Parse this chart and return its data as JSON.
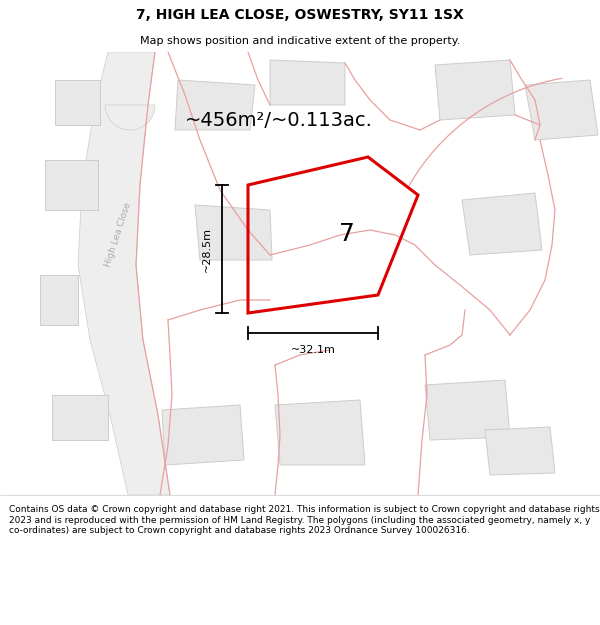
{
  "title": "7, HIGH LEA CLOSE, OSWESTRY, SY11 1SX",
  "subtitle": "Map shows position and indicative extent of the property.",
  "area_label": "~456m²/~0.113ac.",
  "number_label": "7",
  "width_label": "~32.1m",
  "height_label": "~28.5m",
  "road_label": "High Lea Close",
  "footer": "Contains OS data © Crown copyright and database right 2021. This information is subject to Crown copyright and database rights 2023 and is reproduced with the permission of HM Land Registry. The polygons (including the associated geometry, namely x, y co-ordinates) are subject to Crown copyright and database rights 2023 Ordnance Survey 100026316.",
  "bg_color": "#ffffff",
  "map_bg": "#ffffff",
  "plot_outline_color": "#dd0000",
  "cadastral_color": "#e8a0a0",
  "building_fill": "#e8e8e8",
  "building_edge": "#cccccc",
  "road_fill": "#eeeeee",
  "road_edge": "#cccccc",
  "road_center_fill": "#f8f8f8",
  "title_fontsize": 10,
  "subtitle_fontsize": 8,
  "footer_fontsize": 6.5,
  "area_fontsize": 14,
  "number_fontsize": 18,
  "dim_fontsize": 8
}
